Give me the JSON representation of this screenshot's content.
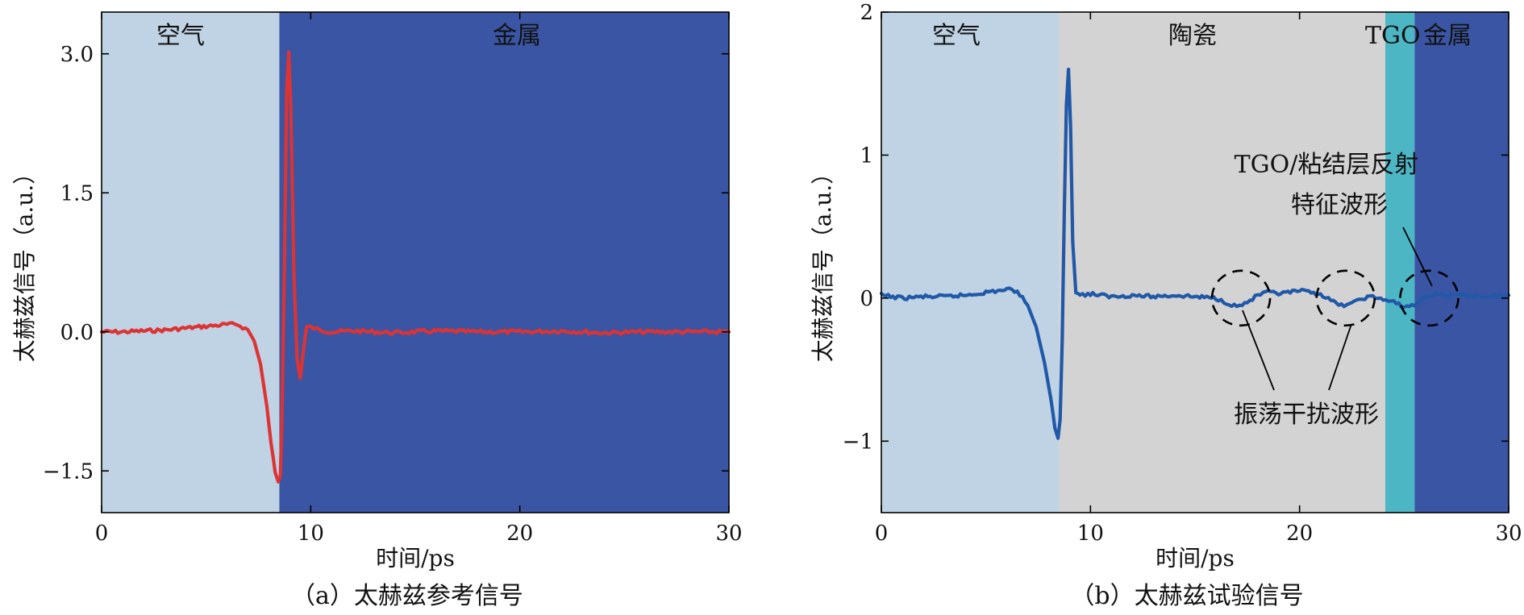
{
  "chart_data": [
    {
      "type": "line",
      "caption": "（a）太赫兹参考信号",
      "xlabel": "时间/ps",
      "ylabel": "太赫兹信号（a.u.）",
      "xlim": [
        0,
        30
      ],
      "ylim": [
        -1.95,
        3.45
      ],
      "xticks": [
        0,
        10,
        20,
        30
      ],
      "yticks": [
        -1.5,
        0.0,
        1.5,
        3.0
      ],
      "ytick_labels": [
        "−1.5",
        "0.0",
        "1.5",
        "3.0"
      ],
      "regions": [
        {
          "label": "空气",
          "x_start": 0,
          "x_end": 8.5,
          "color": "#bfd3e4"
        },
        {
          "label": "金属",
          "x_start": 8.5,
          "x_end": 30,
          "color": "#3a55a3"
        }
      ],
      "series": [
        {
          "color": "#dd3333",
          "x": [
            0,
            1,
            2,
            3,
            4,
            5,
            6,
            6.5,
            7,
            7.3,
            7.6,
            7.9,
            8.1,
            8.3,
            8.45,
            8.55,
            8.62,
            8.75,
            8.85,
            8.95,
            9.05,
            9.2,
            9.35,
            9.5,
            9.65,
            9.8,
            10,
            10.4,
            11,
            12,
            14,
            16,
            18,
            20,
            22,
            24,
            26,
            28,
            30
          ],
          "y": [
            0,
            0,
            0.01,
            0.02,
            0.04,
            0.06,
            0.08,
            0.08,
            0.02,
            -0.1,
            -0.35,
            -0.8,
            -1.2,
            -1.5,
            -1.62,
            -1.55,
            -1.0,
            0.8,
            2.6,
            3.02,
            2.4,
            0.6,
            -0.3,
            -0.5,
            -0.2,
            0.05,
            0.05,
            0.02,
            0,
            0.01,
            -0.01,
            0.01,
            0,
            0,
            0.01,
            -0.01,
            0,
            0,
            0
          ]
        }
      ]
    },
    {
      "type": "line",
      "caption": "（b）太赫兹试验信号",
      "xlabel": "时间/ps",
      "ylabel": "太赫兹信号（a.u.）",
      "xlim": [
        0,
        30
      ],
      "ylim": [
        -1.5,
        2
      ],
      "xticks": [
        0,
        10,
        20,
        30
      ],
      "yticks": [
        -1,
        0,
        1,
        2
      ],
      "ytick_labels": [
        "−1",
        "0",
        "1",
        "2"
      ],
      "regions": [
        {
          "label": "空气",
          "x_start": 0,
          "x_end": 8.5,
          "color": "#bfd3e4"
        },
        {
          "label": "陶瓷",
          "x_start": 8.5,
          "x_end": 24.1,
          "color": "#d3d3d3"
        },
        {
          "label": "TGO",
          "x_start": 24.1,
          "x_end": 25.5,
          "color": "#4db6c4"
        },
        {
          "label": "金属",
          "x_start": 25.5,
          "x_end": 30,
          "color": "#3a55a3"
        }
      ],
      "series": [
        {
          "color": "#2158a8",
          "x": [
            0,
            1,
            2,
            3,
            4,
            5,
            6,
            6.5,
            7,
            7.4,
            7.8,
            8.1,
            8.3,
            8.45,
            8.55,
            8.65,
            8.75,
            8.85,
            8.95,
            9.05,
            9.15,
            9.3,
            9.5,
            10,
            11,
            12,
            13,
            14,
            15,
            16,
            16.5,
            17,
            17.5,
            18,
            18.5,
            19,
            20,
            21,
            21.5,
            22,
            22.5,
            23,
            23.5,
            24,
            24.5,
            25,
            25.5,
            26,
            26.5,
            27,
            28,
            29,
            30
          ],
          "y": [
            0.02,
            0,
            0.01,
            0.01,
            0.02,
            0.04,
            0.06,
            0.05,
            -0.05,
            -0.2,
            -0.45,
            -0.7,
            -0.9,
            -0.98,
            -0.85,
            -0.3,
            0.6,
            1.35,
            1.6,
            1.2,
            0.4,
            0.05,
            0.02,
            0.03,
            0.01,
            0.02,
            0.01,
            0.02,
            0.01,
            0,
            -0.03,
            -0.06,
            -0.03,
            0.02,
            0.04,
            0.03,
            0.05,
            0.03,
            -0.02,
            -0.05,
            -0.04,
            0,
            0.01,
            -0.01,
            -0.03,
            -0.06,
            -0.05,
            0.01,
            0.03,
            0.02,
            0.02,
            0.01,
            0.02
          ]
        }
      ],
      "annotations": {
        "oscillation_label": "振荡干扰波形",
        "feature_label_line1": "TGO/粘结层反射",
        "feature_label_line2": "特征波形",
        "ellipses_at_x": [
          17.2,
          22.2,
          26.2
        ]
      }
    }
  ]
}
